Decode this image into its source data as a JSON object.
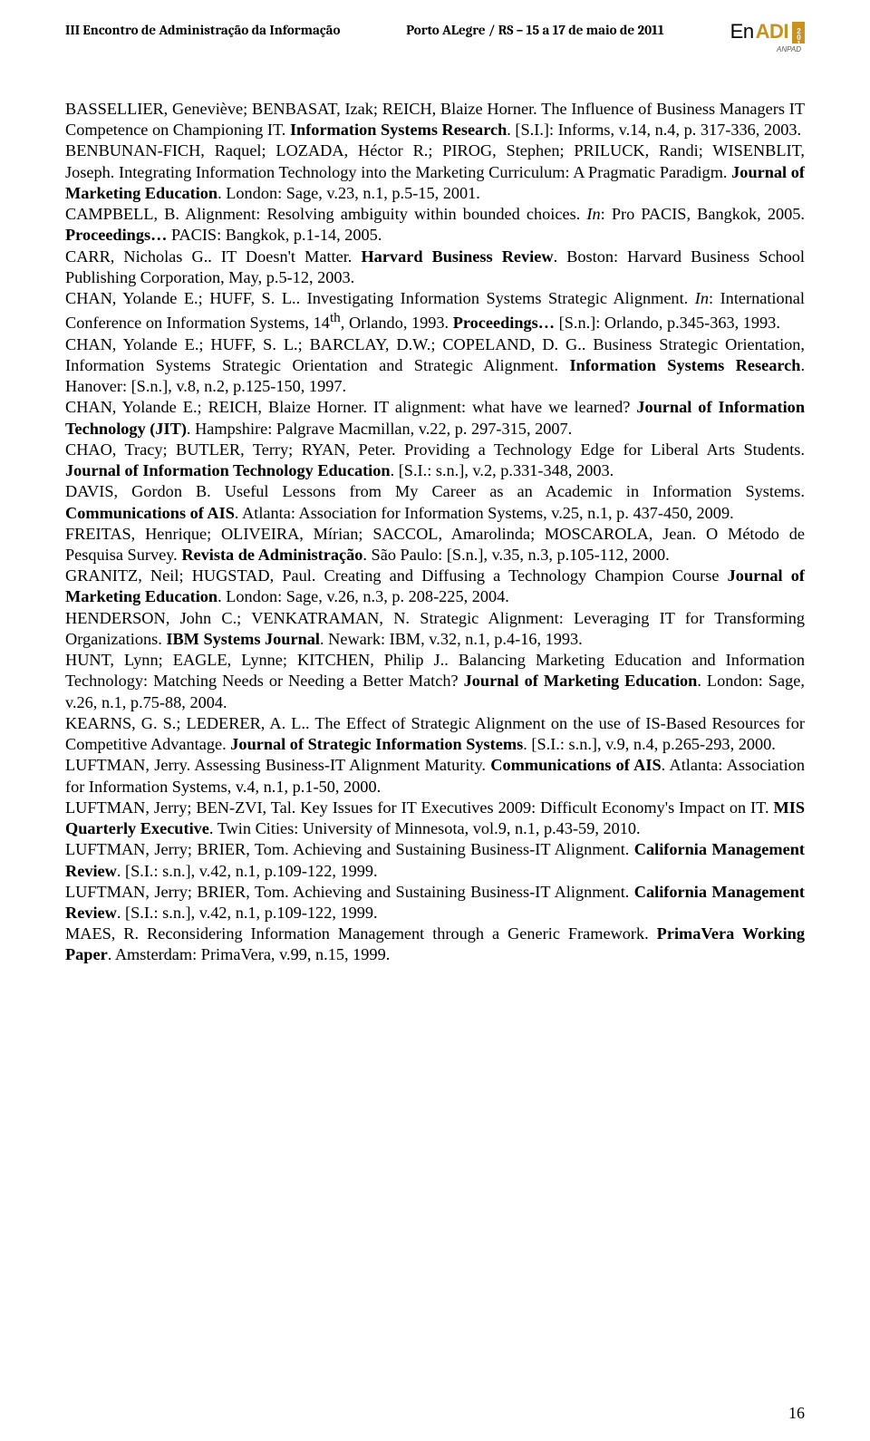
{
  "header": {
    "event_title": "III Encontro de Administração da Informação",
    "location_dates": "Porto ALegre / RS – 15 a 17 de maio de 2011",
    "logo_en": "En",
    "logo_adi": "ADI",
    "logo_year": "2011",
    "anpad": "ANPAD"
  },
  "refs": [
    "BASSELLIER, Geneviève; BENBASAT, Izak; REICH, Blaize Horner. The Influence of Business Managers IT Competence on Championing IT. <b>Information Systems Research</b>. [S.I.]: Informs, v.14, n.4, p. 317-336, 2003.",
    "BENBUNAN-FICH, Raquel; LOZADA, Héctor R.; PIROG, Stephen; PRILUCK, Randi; WISENBLIT, Joseph. Integrating Information Technology into the Marketing Curriculum: A Pragmatic Paradigm. <b>Journal of Marketing Education</b>. London: Sage, v.23, n.1, p.5-15, 2001.",
    "CAMPBELL, B. Alignment: Resolving ambiguity within bounded choices. <i>In</i>: Pro PACIS, Bangkok, 2005. <b>Proceedings…</b> PACIS: Bangkok, p.1-14, 2005.",
    "CARR, Nicholas G.. IT Doesn't Matter. <b>Harvard Business Review</b>. Boston: Harvard Business School Publishing Corporation, May, p.5-12, 2003.",
    "CHAN, Yolande E.; HUFF, S. L.. Investigating Information Systems Strategic Alignment. <i>In</i>: International Conference on Information Systems, 14<sup>th</sup>, Orlando, 1993. <b>Proceedings…</b> [S.n.]: Orlando, p.345-363, 1993.",
    "CHAN, Yolande E.; HUFF, S. L.; BARCLAY, D.W.; COPELAND, D. G.. Business Strategic Orientation, Information Systems Strategic Orientation and Strategic Alignment. <b>Information Systems Research</b>. Hanover: [S.n.], v.8, n.2, p.125-150, 1997.",
    "CHAN, Yolande E.; REICH, Blaize Horner. IT alignment: what have we learned? <b>Journal of Information Technology (JIT)</b>. Hampshire: Palgrave Macmillan, v.22, p. 297-315, 2007.",
    "CHAO, Tracy; BUTLER, Terry; RYAN, Peter. Providing a Technology Edge for Liberal Arts Students. <b>Journal of Information Technology Education</b>. [S.I.: s.n.], v.2, p.331-348, 2003.",
    "DAVIS, Gordon B. Useful Lessons from My Career as an Academic in Information Systems. <b>Communications of AIS</b>. Atlanta: Association for Information Systems, v.25, n.1, p. 437-450, 2009.",
    "FREITAS, Henrique; OLIVEIRA, Mírian; SACCOL, Amarolinda; MOSCAROLA, Jean. O Método de Pesquisa Survey. <b>Revista de Administração</b>. São Paulo: [S.n.], v.35, n.3, p.105-112, 2000.",
    "GRANITZ, Neil; HUGSTAD, Paul. Creating and Diffusing a Technology Champion Course <b>Journal of Marketing Education</b>. London: Sage, v.26, n.3, p. 208-225, 2004.",
    "HENDERSON, John C.; VENKATRAMAN, N. Strategic Alignment: Leveraging IT for Transforming Organizations. <b>IBM Systems Journal</b>. Newark: IBM, v.32, n.1, p.4-16, 1993.",
    "HUNT, Lynn; EAGLE, Lynne; KITCHEN, Philip J.. Balancing Marketing Education and Information Technology: Matching Needs or Needing a Better Match? <b>Journal of Marketing Education</b>. London: Sage, v.26, n.1, p.75-88, 2004.",
    "KEARNS, G. S.; LEDERER, A. L.. The Effect of Strategic Alignment on the use of IS-Based Resources for Competitive Advantage. <b>Journal of Strategic Information Systems</b>. [S.I.: s.n.], v.9, n.4, p.265-293, 2000.",
    "LUFTMAN, Jerry. Assessing Business-IT Alignment Maturity. <b>Communications of AIS</b>. Atlanta: Association for Information Systems, v.4, n.1, p.1-50, 2000.",
    "LUFTMAN, Jerry; BEN-ZVI, Tal. Key Issues for IT Executives 2009: Difficult Economy's Impact on IT. <b>MIS Quarterly Executive</b>. Twin Cities: University of Minnesota, vol.9, n.1, p.43-59, 2010.",
    "LUFTMAN, Jerry; BRIER, Tom. Achieving and Sustaining Business-IT Alignment. <b>California Management Review</b>. [S.I.: s.n.], v.42, n.1, p.109-122, 1999.",
    "LUFTMAN, Jerry; BRIER, Tom. Achieving and Sustaining Business-IT Alignment. <b>California Management Review</b>. [S.I.: s.n.], v.42, n.1, p.109-122, 1999.",
    "MAES, R. Reconsidering Information Management through a Generic Framework. <b>PrimaVera Working Paper</b>. Amsterdam: PrimaVera, v.99, n.15, 1999."
  ],
  "pagenum": "16"
}
